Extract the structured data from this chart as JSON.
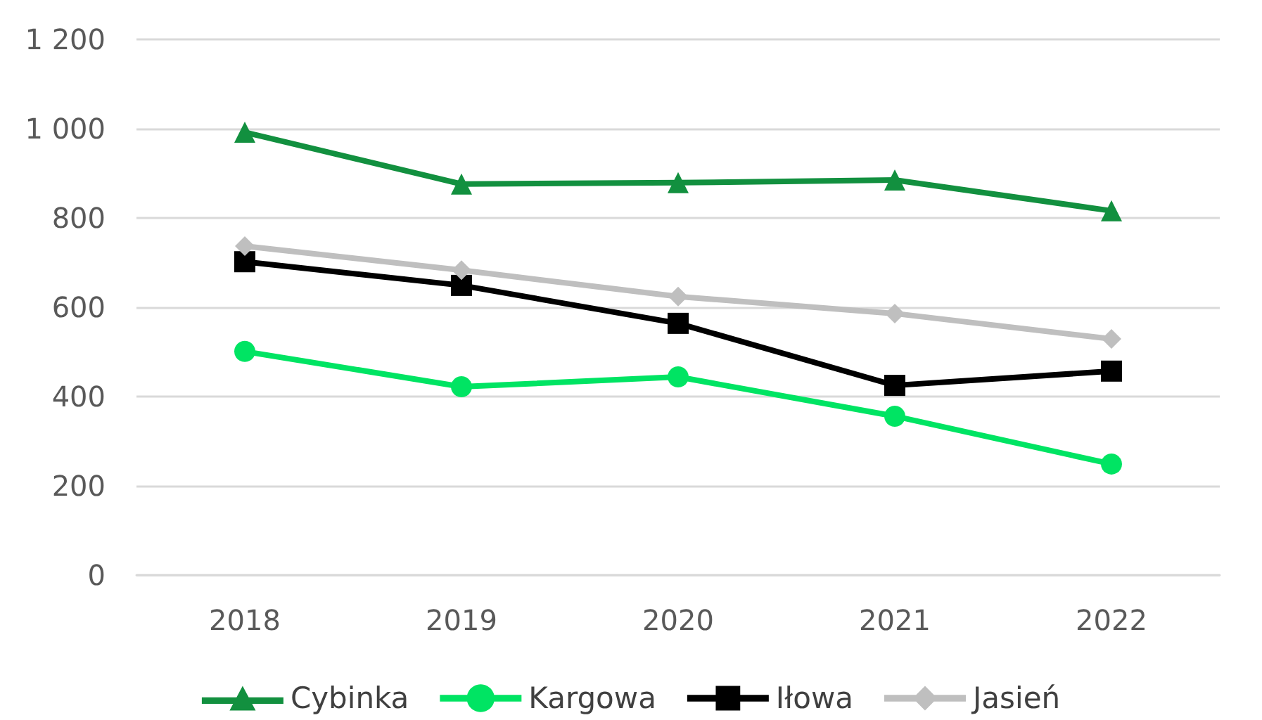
{
  "chart_data": {
    "type": "line",
    "categories": [
      "2018",
      "2019",
      "2020",
      "2021",
      "2022"
    ],
    "series": [
      {
        "name": "Cybinka",
        "color": "#12903f",
        "marker": "triangle",
        "values": [
          992,
          876,
          879,
          885,
          816
        ]
      },
      {
        "name": "Kargowa",
        "color": "#00e463",
        "marker": "circle",
        "values": [
          501,
          422,
          444,
          356,
          249
        ]
      },
      {
        "name": "Iłowa",
        "color": "#000000",
        "marker": "square",
        "values": [
          702,
          649,
          564,
          425,
          457
        ]
      },
      {
        "name": "Jasień",
        "color": "#bfbfbf",
        "marker": "diamond",
        "values": [
          737,
          683,
          624,
          586,
          529
        ]
      }
    ],
    "ylim": [
      0,
      1200
    ],
    "yticks": [
      0,
      200,
      400,
      600,
      800,
      {
        "value": 1000,
        "label": "1 000"
      },
      {
        "value": 1200,
        "label": "1 200"
      }
    ],
    "grid": "y",
    "legend": "bottom",
    "line_style": "solid"
  }
}
